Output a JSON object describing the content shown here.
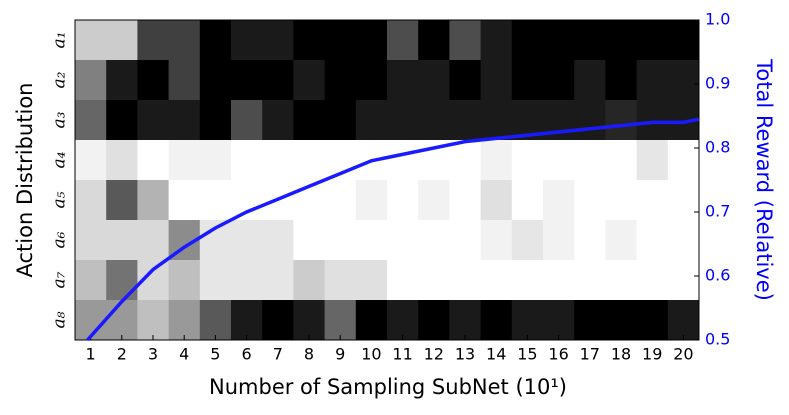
{
  "chart_data": {
    "type": "heatmap",
    "x_label": "Number of Sampling SubNet (10¹)",
    "y_label": "Action Distribution",
    "y2_label": "Total Reward (Relative)",
    "rows": [
      "a₁",
      "a₂",
      "a₃",
      "a₄",
      "a₅",
      "a₆",
      "a₇",
      "a₈"
    ],
    "xlim": [
      0.5,
      20.5
    ],
    "xticks": [
      1,
      2,
      3,
      4,
      5,
      6,
      7,
      8,
      9,
      10,
      11,
      12,
      13,
      14,
      15,
      16,
      17,
      18,
      19,
      20
    ],
    "z": [
      [
        0.8,
        0.8,
        0.25,
        0.25,
        0,
        0.1,
        0.1,
        0,
        0,
        0,
        0.3,
        0,
        0.3,
        0.1,
        0,
        0,
        0,
        0,
        0,
        0
      ],
      [
        0.5,
        0.1,
        0,
        0.25,
        0,
        0,
        0,
        0.1,
        0,
        0,
        0.1,
        0.1,
        0,
        0.1,
        0,
        0,
        0.1,
        0,
        0.1,
        0.1
      ],
      [
        0.4,
        0,
        0.1,
        0.1,
        0,
        0.3,
        0.1,
        0,
        0,
        0.1,
        0.1,
        0.1,
        0.1,
        0.1,
        0.1,
        0.1,
        0.1,
        0.15,
        0.1,
        0.1
      ],
      [
        0.95,
        0.88,
        1,
        0.95,
        0.95,
        1,
        1,
        1,
        1,
        1,
        1,
        1,
        1,
        0.95,
        1,
        1,
        1,
        1,
        0.9,
        1
      ],
      [
        0.85,
        0.35,
        0.7,
        1,
        1,
        1,
        1,
        1,
        1,
        0.95,
        1,
        0.95,
        1,
        0.88,
        1,
        0.95,
        1,
        1,
        1,
        1
      ],
      [
        0.85,
        0.85,
        0.85,
        0.55,
        0.9,
        0.9,
        0.9,
        1,
        1,
        1,
        1,
        1,
        1,
        0.95,
        0.9,
        0.95,
        1,
        0.95,
        1,
        1
      ],
      [
        0.75,
        0.45,
        0.85,
        0.75,
        0.9,
        0.9,
        0.9,
        0.8,
        0.88,
        0.88,
        1,
        1,
        1,
        1,
        1,
        1,
        1,
        1,
        1,
        1
      ],
      [
        0.6,
        0.6,
        0.75,
        0.6,
        0.35,
        0.1,
        0,
        0.1,
        0.4,
        0,
        0.1,
        0,
        0.1,
        0,
        0.1,
        0.1,
        0,
        0,
        0,
        0.1
      ]
    ],
    "y2lim": [
      0.5,
      1
    ],
    "y2ticks": [
      0.5,
      0.6,
      0.7,
      0.8,
      0.9,
      {
        "value": 1,
        "label": "1.0"
      }
    ],
    "line": {
      "axis": "y2",
      "color": "#1a1aff",
      "x": [
        0.9,
        2,
        3,
        4,
        5,
        6,
        7,
        8,
        9,
        10,
        11,
        12,
        13,
        14,
        15,
        16,
        17,
        18,
        19,
        20,
        20.5
      ],
      "y": [
        0.5,
        0.56,
        0.61,
        0.645,
        0.675,
        0.7,
        0.72,
        0.74,
        0.76,
        0.78,
        0.79,
        0.8,
        0.81,
        0.815,
        0.82,
        0.825,
        0.83,
        0.835,
        0.84,
        0.84,
        0.845
      ]
    }
  }
}
